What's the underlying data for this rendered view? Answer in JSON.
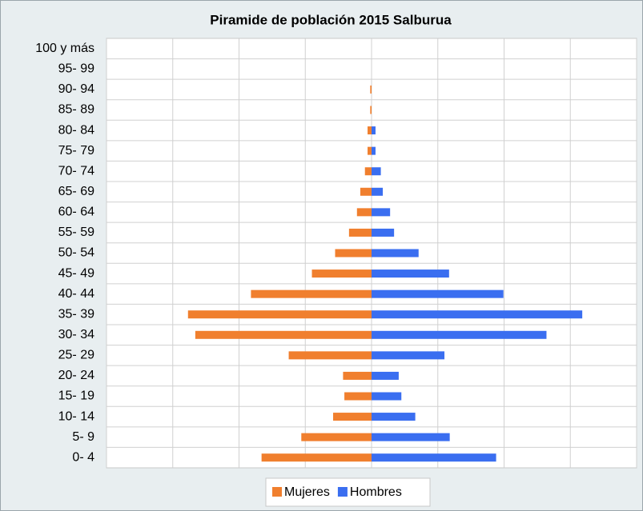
{
  "chart_data": {
    "type": "bar",
    "orientation": "horizontal",
    "stacked": true,
    "title": "Piramide de población 2015 Salburua",
    "categories": [
      "0- 4",
      "5- 9",
      "10- 14",
      "15- 19",
      "20- 24",
      "25- 29",
      "30- 34",
      "35- 39",
      "40- 44",
      "45- 49",
      "50- 54",
      "55- 59",
      "60- 64",
      "65- 69",
      "70- 74",
      "75- 79",
      "80- 84",
      "85- 89",
      "90- 94",
      "95- 99",
      "100 y más"
    ],
    "series": [
      {
        "name": "Mujeres",
        "color": "#f07f2e",
        "values": [
          -166,
          -106,
          -58,
          -41,
          -43,
          -125,
          -266,
          -277,
          -182,
          -90,
          -55,
          -34,
          -22,
          -17,
          -10,
          -6,
          -6,
          -2,
          -2,
          0,
          0
        ]
      },
      {
        "name": "Hombres",
        "color": "#3a6ef0",
        "values": [
          188,
          118,
          66,
          45,
          41,
          110,
          264,
          318,
          199,
          117,
          71,
          34,
          28,
          17,
          14,
          6,
          6,
          0,
          0,
          0,
          0
        ]
      }
    ],
    "xlim": [
      -400,
      400
    ],
    "xticks": [
      -400,
      -300,
      -200,
      -100,
      0,
      100,
      200,
      300,
      400
    ],
    "grid": true,
    "legend": "bottom"
  }
}
